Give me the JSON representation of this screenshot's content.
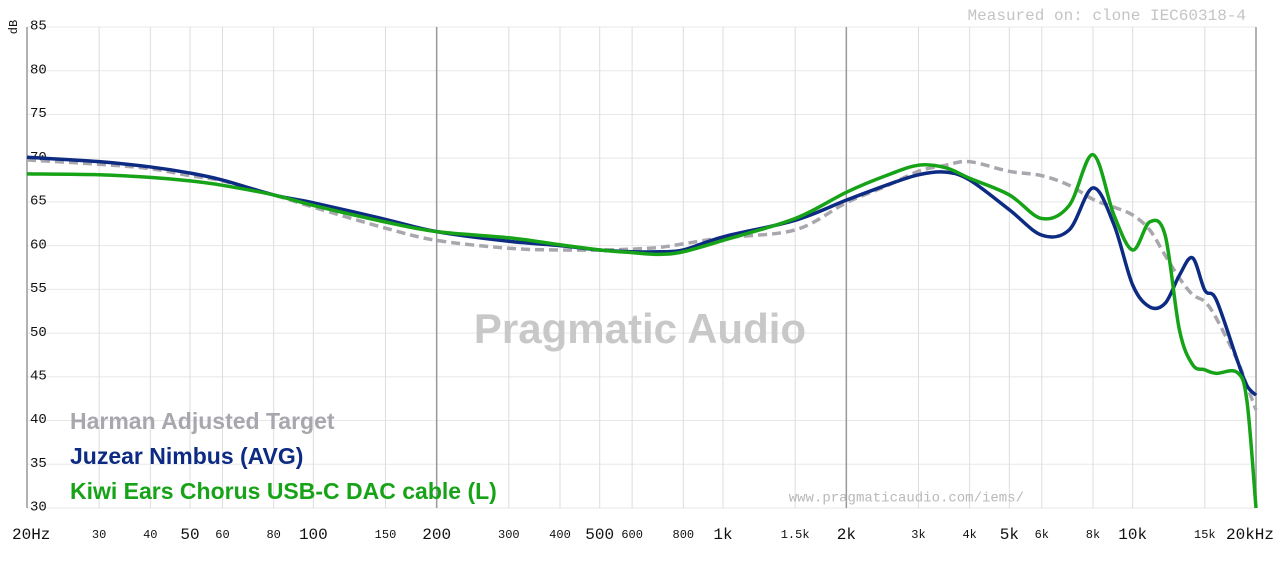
{
  "chart_data": {
    "type": "line",
    "watermark": "Pragmatic Audio",
    "subtitle": "Measured on: clone IEC60318-4",
    "source": "www.pragmaticaudio.com/iems/",
    "y_label": "dB",
    "x_scale": "log",
    "grid": true,
    "legend_position": "lower left",
    "x": [
      20,
      30,
      40,
      50,
      60,
      80,
      100,
      150,
      200,
      300,
      400,
      500,
      600,
      700,
      800,
      1000,
      1500,
      2000,
      2500,
      3000,
      3500,
      4000,
      5000,
      6000,
      7000,
      8000,
      9000,
      10000,
      11000,
      12000,
      13000,
      14000,
      15000,
      16000,
      18000,
      19000,
      20000
    ],
    "series": [
      {
        "name": "Harman Adjusted Target",
        "color": "#a9a7ae",
        "dashed": true,
        "values": [
          69.8,
          69.3,
          68.8,
          68.0,
          67.4,
          65.8,
          64.4,
          62.0,
          60.6,
          59.7,
          59.5,
          59.5,
          59.6,
          59.8,
          60.2,
          60.9,
          61.8,
          64.9,
          66.8,
          68.5,
          69.2,
          69.6,
          68.5,
          68.0,
          66.9,
          65.3,
          64.4,
          63.5,
          61.8,
          58.9,
          56.3,
          54.4,
          53.6,
          51.7,
          46.9,
          44.0,
          41.2
        ]
      },
      {
        "name": "Juzear Nimbus (AVG)",
        "color": "#0d2b82",
        "dashed": false,
        "values": [
          70.1,
          69.6,
          69.0,
          68.3,
          67.5,
          65.8,
          64.9,
          63.0,
          61.6,
          60.5,
          60.0,
          59.5,
          59.3,
          59.3,
          59.5,
          61.0,
          62.9,
          65.2,
          66.9,
          68.1,
          68.4,
          67.5,
          64.1,
          61.2,
          61.8,
          66.6,
          62.4,
          55.5,
          53.0,
          53.4,
          56.6,
          58.6,
          54.9,
          53.8,
          46.9,
          44.0,
          42.9
        ]
      },
      {
        "name": "Kiwi Ears Chorus USB-C DAC cable (L)",
        "color": "#17a317",
        "dashed": false,
        "values": [
          68.2,
          68.1,
          67.8,
          67.4,
          66.9,
          65.8,
          64.6,
          62.7,
          61.6,
          60.9,
          60.1,
          59.5,
          59.2,
          59.0,
          59.3,
          60.6,
          63.1,
          66.1,
          68.0,
          69.2,
          68.9,
          67.7,
          65.8,
          63.1,
          64.6,
          70.4,
          63.5,
          59.5,
          62.7,
          61.2,
          50.4,
          46.4,
          45.8,
          45.4,
          45.5,
          42.3,
          30.0
        ]
      }
    ],
    "xlim": [
      20,
      20000
    ],
    "xticks": [
      {
        "value": 20,
        "label": "20Hz"
      },
      30,
      40,
      50,
      60,
      80,
      100,
      150,
      200,
      300,
      400,
      500,
      600,
      800,
      {
        "value": 1000,
        "label": "1k"
      },
      {
        "value": 1500,
        "label": "1.5k"
      },
      {
        "value": 2000,
        "label": "2k"
      },
      {
        "value": 3000,
        "label": "3k"
      },
      {
        "value": 4000,
        "label": "4k"
      },
      {
        "value": 5000,
        "label": "5k"
      },
      {
        "value": 6000,
        "label": "6k"
      },
      {
        "value": 8000,
        "label": "8k"
      },
      {
        "value": 10000,
        "label": "10k"
      },
      {
        "value": 15000,
        "label": "15k"
      },
      {
        "value": 20000,
        "label": "20kHz"
      }
    ],
    "ylim": [
      30,
      85
    ],
    "yticks": [
      30,
      35,
      40,
      45,
      50,
      55,
      60,
      65,
      70,
      75,
      80,
      85
    ]
  }
}
